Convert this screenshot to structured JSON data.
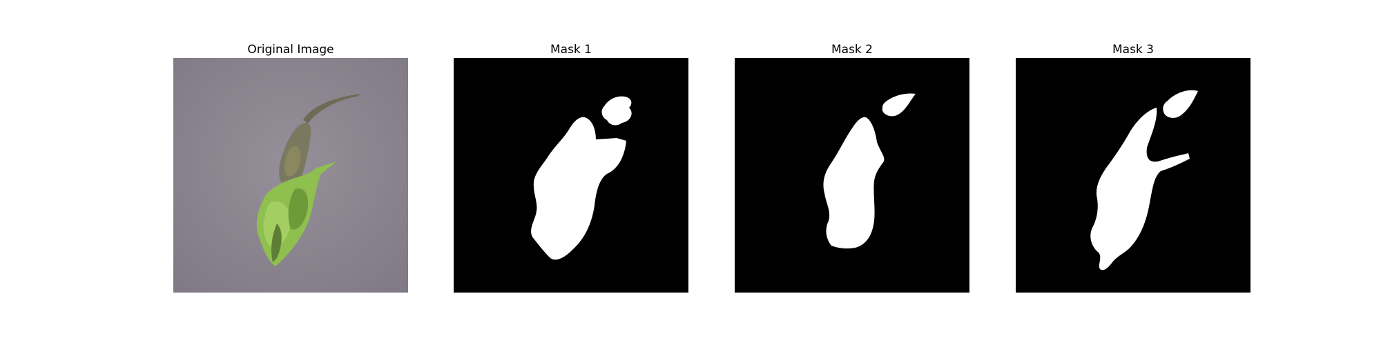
{
  "panels": [
    {
      "title": "Original Image",
      "kind": "photo",
      "description_icon": "leaf-photo"
    },
    {
      "title": "Mask 1",
      "kind": "mask",
      "colors": {
        "background": "#000000",
        "foreground": "#ffffff"
      }
    },
    {
      "title": "Mask 2",
      "kind": "mask",
      "colors": {
        "background": "#000000",
        "foreground": "#ffffff"
      }
    },
    {
      "title": "Mask 3",
      "kind": "mask",
      "colors": {
        "background": "#000000",
        "foreground": "#ffffff"
      }
    }
  ],
  "colors": {
    "photo_background": "#8d8791",
    "leaf_dry": "#7c7b5a",
    "leaf_green": "#8fbf4f",
    "mask_background": "#000000",
    "mask_foreground": "#ffffff"
  }
}
